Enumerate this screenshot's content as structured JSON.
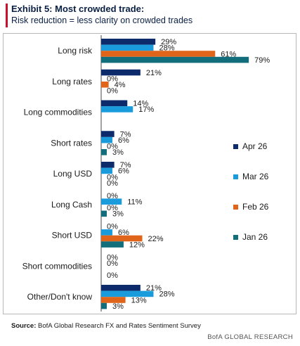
{
  "header": {
    "title": "Exhibit 5: Most crowded trade:",
    "subtitle": "Risk reduction = less clarity on crowded trades"
  },
  "footer": {
    "source_label": "Source:",
    "source_text": "BofA Global Research FX and Rates Sentiment Survey",
    "brand": "BofA GLOBAL RESEARCH"
  },
  "chart_data": {
    "type": "bar",
    "orientation": "horizontal",
    "title": "Most crowded trade:",
    "subtitle": "Risk reduction = less clarity on crowded trades",
    "categories": [
      "Long risk",
      "Long rates",
      "Long commodities",
      "Short rates",
      "Long USD",
      "Long Cash",
      "Short USD",
      "Short commodities",
      "Other/Don't know"
    ],
    "series": [
      {
        "name": "Apr 26",
        "color": "#0d2a6b",
        "values": [
          29,
          21,
          14,
          7,
          7,
          0,
          0,
          0,
          21
        ]
      },
      {
        "name": "Mar 26",
        "color": "#1a9bdc",
        "values": [
          28,
          0,
          17,
          6,
          6,
          11,
          6,
          0,
          28
        ]
      },
      {
        "name": "Feb 26",
        "color": "#e0651b",
        "values": [
          61,
          4,
          null,
          0,
          0,
          0,
          22,
          null,
          13
        ]
      },
      {
        "name": "Jan 26",
        "color": "#136e7c",
        "values": [
          79,
          0,
          null,
          3,
          0,
          3,
          12,
          0,
          3
        ]
      }
    ],
    "value_suffix": "%",
    "xlim": [
      0,
      80
    ],
    "legend": "right",
    "grid": false
  }
}
